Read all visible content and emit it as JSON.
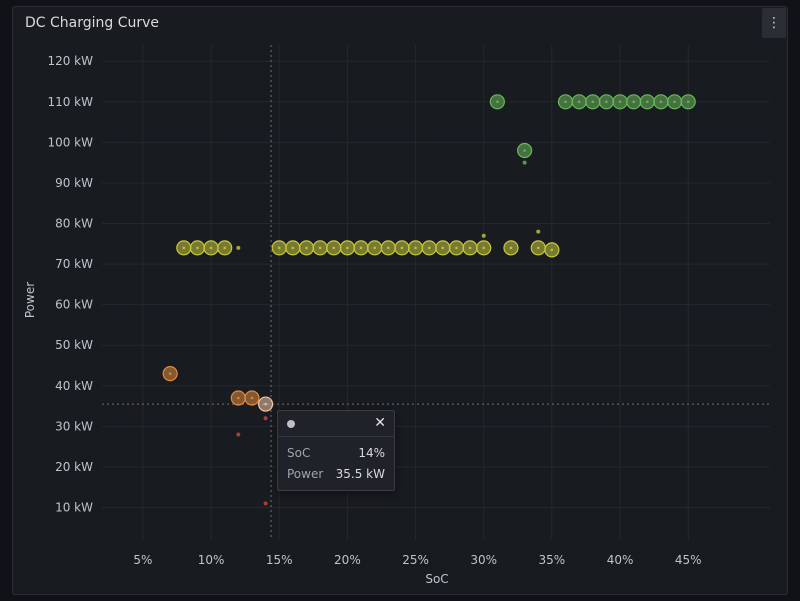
{
  "panel": {
    "title": "DC Charging Curve",
    "menu_icon": "vertical-ellipsis-icon"
  },
  "tooltip": {
    "rows": [
      {
        "label": "SoC",
        "value": "14%"
      },
      {
        "label": "Power",
        "value": "35.5 kW"
      }
    ],
    "close_icon": "close-icon",
    "series_dot_color": "#bfbfc4"
  },
  "chart_data": {
    "type": "scatter",
    "title": "DC Charging Curve",
    "xlabel": "SoC",
    "ylabel": "Power",
    "xlim": [
      2,
      51
    ],
    "ylim": [
      2,
      124
    ],
    "x_ticks": [
      "5%",
      "10%",
      "15%",
      "20%",
      "25%",
      "30%",
      "35%",
      "40%",
      "45%"
    ],
    "y_ticks": [
      "10 kW",
      "20 kW",
      "30 kW",
      "40 kW",
      "50 kW",
      "60 kW",
      "70 kW",
      "80 kW",
      "90 kW",
      "100 kW",
      "110 kW",
      "120 kW"
    ],
    "grid": true,
    "crosshair": {
      "x": 14.4,
      "y": 35.5
    },
    "points": [
      {
        "x": 7,
        "y": 43,
        "color": "#e08a3c",
        "size": "large"
      },
      {
        "x": 12,
        "y": 37,
        "color": "#e08a3c",
        "size": "large"
      },
      {
        "x": 13,
        "y": 37,
        "color": "#e08a3c",
        "size": "large"
      },
      {
        "x": 14,
        "y": 35.5,
        "color": "#f2c4a6",
        "size": "large"
      },
      {
        "x": 12,
        "y": 28,
        "color": "#d0463c",
        "size": "small"
      },
      {
        "x": 14,
        "y": 32,
        "color": "#d0463c",
        "size": "small"
      },
      {
        "x": 14,
        "y": 11,
        "color": "#d0463c",
        "size": "small"
      },
      {
        "x": 8,
        "y": 74,
        "color": "#c8c83c",
        "size": "large"
      },
      {
        "x": 9,
        "y": 74,
        "color": "#c8c83c",
        "size": "large"
      },
      {
        "x": 10,
        "y": 74,
        "color": "#c8c83c",
        "size": "large"
      },
      {
        "x": 11,
        "y": 74,
        "color": "#c8c83c",
        "size": "large"
      },
      {
        "x": 12,
        "y": 74,
        "color": "#c8c83c",
        "size": "small"
      },
      {
        "x": 15,
        "y": 74,
        "color": "#c8c83c",
        "size": "large"
      },
      {
        "x": 16,
        "y": 74,
        "color": "#c8c83c",
        "size": "large"
      },
      {
        "x": 17,
        "y": 74,
        "color": "#c8c83c",
        "size": "large"
      },
      {
        "x": 18,
        "y": 74,
        "color": "#c8c83c",
        "size": "large"
      },
      {
        "x": 19,
        "y": 74,
        "color": "#c8c83c",
        "size": "large"
      },
      {
        "x": 20,
        "y": 74,
        "color": "#c8c83c",
        "size": "large"
      },
      {
        "x": 21,
        "y": 74,
        "color": "#c8c83c",
        "size": "large"
      },
      {
        "x": 22,
        "y": 74,
        "color": "#c8c83c",
        "size": "large"
      },
      {
        "x": 23,
        "y": 74,
        "color": "#c8c83c",
        "size": "large"
      },
      {
        "x": 24,
        "y": 74,
        "color": "#c8c83c",
        "size": "large"
      },
      {
        "x": 25,
        "y": 74,
        "color": "#c8c83c",
        "size": "large"
      },
      {
        "x": 26,
        "y": 74,
        "color": "#c8c83c",
        "size": "large"
      },
      {
        "x": 27,
        "y": 74,
        "color": "#c8c83c",
        "size": "large"
      },
      {
        "x": 28,
        "y": 74,
        "color": "#c8c83c",
        "size": "large"
      },
      {
        "x": 29,
        "y": 74,
        "color": "#c8c83c",
        "size": "large"
      },
      {
        "x": 30,
        "y": 74,
        "color": "#c8c83c",
        "size": "large"
      },
      {
        "x": 30,
        "y": 77,
        "color": "#c8c83c",
        "size": "small"
      },
      {
        "x": 32,
        "y": 74,
        "color": "#c8c83c",
        "size": "large"
      },
      {
        "x": 34,
        "y": 74,
        "color": "#c8c83c",
        "size": "large"
      },
      {
        "x": 34,
        "y": 78,
        "color": "#c8c83c",
        "size": "small"
      },
      {
        "x": 35,
        "y": 73.5,
        "color": "#c8c83c",
        "size": "large"
      },
      {
        "x": 31,
        "y": 110,
        "color": "#6ab85a",
        "size": "large"
      },
      {
        "x": 33,
        "y": 98,
        "color": "#6ab85a",
        "size": "large"
      },
      {
        "x": 33,
        "y": 95,
        "color": "#6ab85a",
        "size": "small"
      },
      {
        "x": 36,
        "y": 110,
        "color": "#6ab85a",
        "size": "large"
      },
      {
        "x": 37,
        "y": 110,
        "color": "#6ab85a",
        "size": "large"
      },
      {
        "x": 38,
        "y": 110,
        "color": "#6ab85a",
        "size": "large"
      },
      {
        "x": 39,
        "y": 110,
        "color": "#6ab85a",
        "size": "large"
      },
      {
        "x": 40,
        "y": 110,
        "color": "#6ab85a",
        "size": "large"
      },
      {
        "x": 41,
        "y": 110,
        "color": "#6ab85a",
        "size": "large"
      },
      {
        "x": 42,
        "y": 110,
        "color": "#6ab85a",
        "size": "large"
      },
      {
        "x": 43,
        "y": 110,
        "color": "#6ab85a",
        "size": "large"
      },
      {
        "x": 44,
        "y": 110,
        "color": "#6ab85a",
        "size": "large"
      },
      {
        "x": 45,
        "y": 110,
        "color": "#6ab85a",
        "size": "large"
      }
    ]
  }
}
